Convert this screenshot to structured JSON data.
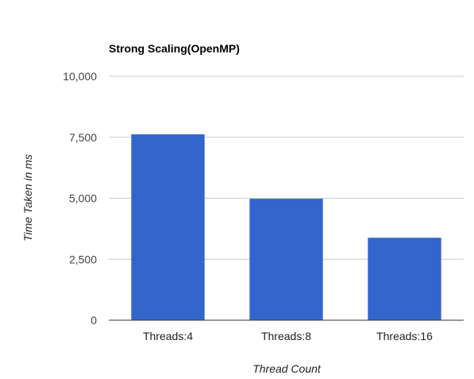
{
  "chart_data": {
    "type": "bar",
    "title": "Strong Scaling(OpenMP)",
    "xlabel": "Thread Count",
    "ylabel": "Time Taken in ms",
    "categories": [
      "Threads:4",
      "Threads:8",
      "Threads:16"
    ],
    "series": [
      {
        "values": [
          7620,
          4980,
          3380
        ]
      }
    ],
    "ylim": [
      0,
      10000
    ],
    "yticks": [
      0,
      2500,
      5000,
      7500,
      10000
    ],
    "ytick_labels": [
      "0",
      "2,500",
      "5,000",
      "7,500",
      "10,000"
    ],
    "grid": true,
    "legend": "none",
    "colors": {
      "bar": "#3366cc",
      "grid": "#cccccc",
      "baseline": "#333333"
    }
  }
}
